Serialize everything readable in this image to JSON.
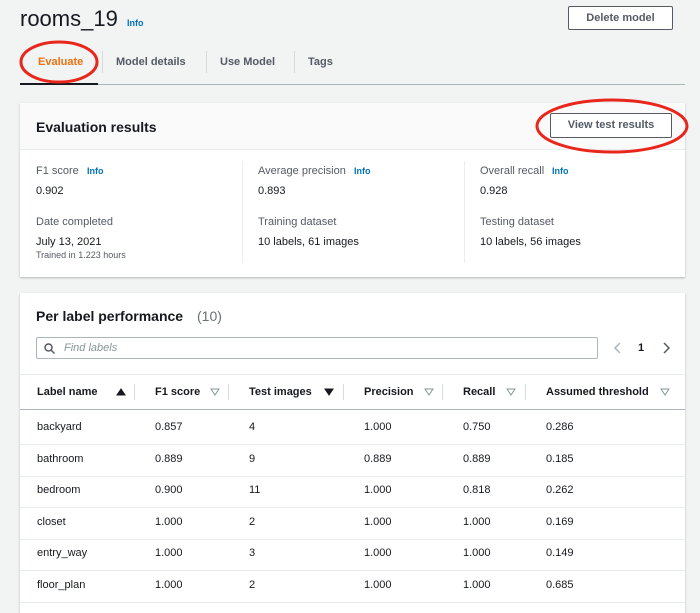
{
  "header": {
    "title": "rooms_19",
    "info": "Info",
    "delete_button": "Delete model"
  },
  "tabs": [
    "Evaluate",
    "Model details",
    "Use Model",
    "Tags"
  ],
  "evaluation": {
    "title": "Evaluation results",
    "button": "View test results",
    "metrics": [
      {
        "label": "F1 score",
        "info": "Info",
        "value": "0.902"
      },
      {
        "label": "Average precision",
        "info": "Info",
        "value": "0.893"
      },
      {
        "label": "Overall recall",
        "info": "Info",
        "value": "0.928"
      }
    ],
    "details": [
      {
        "label": "Date completed",
        "value": "July 13, 2021",
        "note": "Trained in 1.223 hours"
      },
      {
        "label": "Training dataset",
        "value": "10 labels, 61 images"
      },
      {
        "label": "Testing dataset",
        "value": "10 labels, 56 images"
      }
    ]
  },
  "per_label": {
    "title": "Per label performance",
    "count": "(10)",
    "search_placeholder": "Find labels",
    "page": "1",
    "columns": [
      "Label name",
      "F1 score",
      "Test images",
      "Precision",
      "Recall",
      "Assumed threshold"
    ],
    "rows": [
      [
        "backyard",
        "0.857",
        "4",
        "1.000",
        "0.750",
        "0.286"
      ],
      [
        "bathroom",
        "0.889",
        "9",
        "0.889",
        "0.889",
        "0.185"
      ],
      [
        "bedroom",
        "0.900",
        "11",
        "1.000",
        "0.818",
        "0.262"
      ],
      [
        "closet",
        "1.000",
        "2",
        "1.000",
        "1.000",
        "0.169"
      ],
      [
        "entry_way",
        "1.000",
        "3",
        "1.000",
        "1.000",
        "0.149"
      ],
      [
        "floor_plan",
        "1.000",
        "2",
        "1.000",
        "1.000",
        "0.685"
      ]
    ]
  }
}
